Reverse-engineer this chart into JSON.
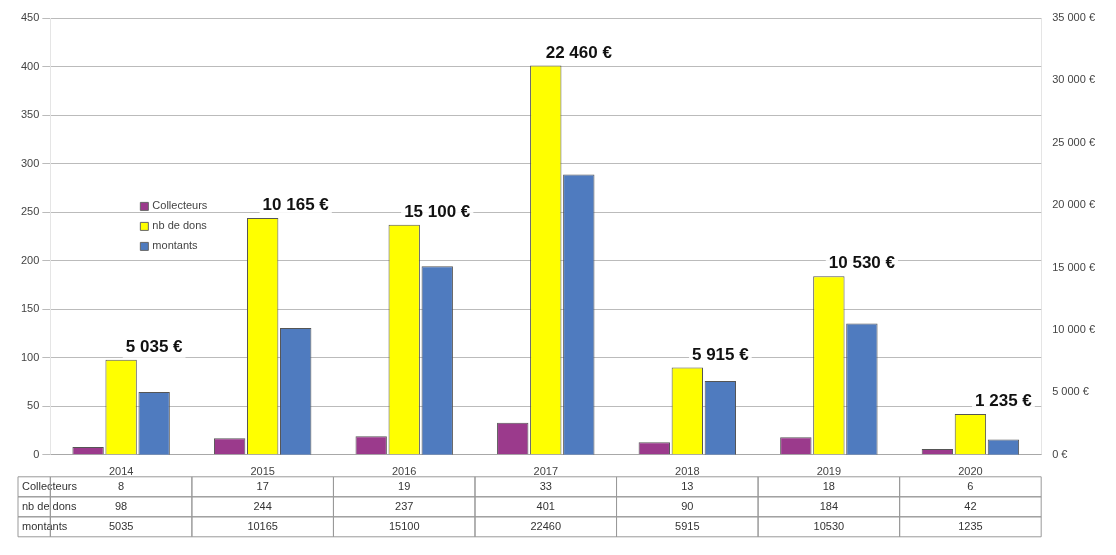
{
  "chart_data": {
    "type": "bar",
    "categories": [
      "2014",
      "2015",
      "2016",
      "2017",
      "2018",
      "2019",
      "2020"
    ],
    "series": [
      {
        "name": "Collecteurs",
        "color": "#9b3a8c",
        "values": [
          8,
          17,
          19,
          33,
          13,
          18,
          6
        ]
      },
      {
        "name": "nb de dons",
        "color": "#ffff00",
        "values": [
          98,
          244,
          237,
          401,
          90,
          184,
          42
        ]
      },
      {
        "name": "montants",
        "color": "#4f7bbf",
        "axis": "y2",
        "values": [
          5035,
          10165,
          15100,
          22460,
          5915,
          10530,
          1235
        ]
      }
    ],
    "annotations": [
      "5 035 €",
      "10 165 €",
      "15 100 €",
      "22 460 €",
      "5 915 €",
      "10 530 €",
      "1 235 €"
    ],
    "ylim": [
      0,
      450
    ],
    "yticks": [
      0,
      50,
      100,
      150,
      200,
      250,
      300,
      350,
      400,
      450
    ],
    "y2lim": [
      0,
      35000
    ],
    "y2ticks": [
      {
        "value": 0,
        "label": "0 €"
      },
      {
        "value": 5000,
        "label": "5 000 €"
      },
      {
        "value": 10000,
        "label": "10 000 €"
      },
      {
        "value": 15000,
        "label": "15 000 €"
      },
      {
        "value": 20000,
        "label": "20 000 €"
      },
      {
        "value": 25000,
        "label": "25 000 €"
      },
      {
        "value": 30000,
        "label": "30 000 €"
      },
      {
        "value": 35000,
        "label": "35 000 €"
      }
    ],
    "grid": "y",
    "legend": "left",
    "data_labels": true
  }
}
